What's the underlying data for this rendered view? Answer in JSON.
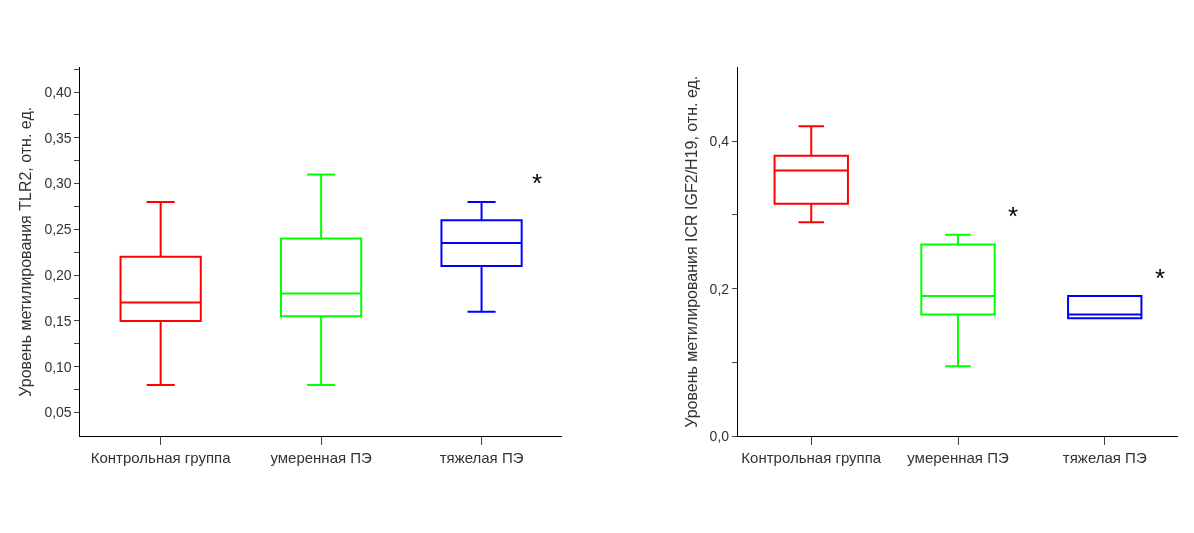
{
  "chart_data": [
    {
      "type": "box",
      "ylabel": "Уровень метилирования TLR2, отн. ед.",
      "categories": [
        "Контрольная группа",
        "умеренная ПЭ",
        "тяжелая ПЭ"
      ],
      "colors": [
        "#ff0000",
        "#00ff00",
        "#0000ff"
      ],
      "boxes": [
        {
          "low": 0.08,
          "q1": 0.15,
          "median": 0.17,
          "q3": 0.22,
          "high": 0.28
        },
        {
          "low": 0.08,
          "q1": 0.155,
          "median": 0.18,
          "q3": 0.24,
          "high": 0.31
        },
        {
          "low": 0.16,
          "q1": 0.21,
          "median": 0.235,
          "q3": 0.26,
          "high": 0.28
        }
      ],
      "ylim": [
        0.024,
        0.427
      ],
      "yticks": [
        {
          "value": 0.05,
          "label": "0,05"
        },
        {
          "value": 0.075,
          "label": null
        },
        {
          "value": 0.1,
          "label": "0,10"
        },
        {
          "value": 0.125,
          "label": null
        },
        {
          "value": 0.15,
          "label": "0,15"
        },
        {
          "value": 0.175,
          "label": null
        },
        {
          "value": 0.2,
          "label": "0,20"
        },
        {
          "value": 0.225,
          "label": null
        },
        {
          "value": 0.25,
          "label": "0,25"
        },
        {
          "value": 0.275,
          "label": null
        },
        {
          "value": 0.3,
          "label": "0,30"
        },
        {
          "value": 0.325,
          "label": null
        },
        {
          "value": 0.35,
          "label": "0,35"
        },
        {
          "value": 0.375,
          "label": null
        },
        {
          "value": 0.4,
          "label": "0,40"
        },
        {
          "value": 0.425,
          "label": null
        }
      ],
      "annotations": [
        "*"
      ]
    },
    {
      "type": "box",
      "ylabel": "Уровень метилирования ICR IGF2/H19, отн. ед.",
      "categories": [
        "Контрольная группа",
        "умеренная ПЭ",
        "тяжелая ПЭ"
      ],
      "colors": [
        "#ff0000",
        "#00ff00",
        "#0000ff"
      ],
      "boxes": [
        {
          "low": 0.29,
          "q1": 0.315,
          "median": 0.36,
          "q3": 0.38,
          "high": 0.42
        },
        {
          "low": 0.095,
          "q1": 0.165,
          "median": 0.19,
          "q3": 0.26,
          "high": 0.273
        },
        {
          "low": 0.16,
          "q1": 0.16,
          "median": 0.165,
          "q3": 0.19,
          "high": 0.19
        }
      ],
      "ylim": [
        0,
        0.5
      ],
      "yticks": [
        {
          "value": 0,
          "label": "0,0"
        },
        {
          "value": 0.1,
          "label": null
        },
        {
          "value": 0.2,
          "label": "0,2"
        },
        {
          "value": 0.3,
          "label": null
        },
        {
          "value": 0.4,
          "label": "0,4"
        }
      ],
      "annotations": [
        "*",
        "*"
      ]
    }
  ]
}
